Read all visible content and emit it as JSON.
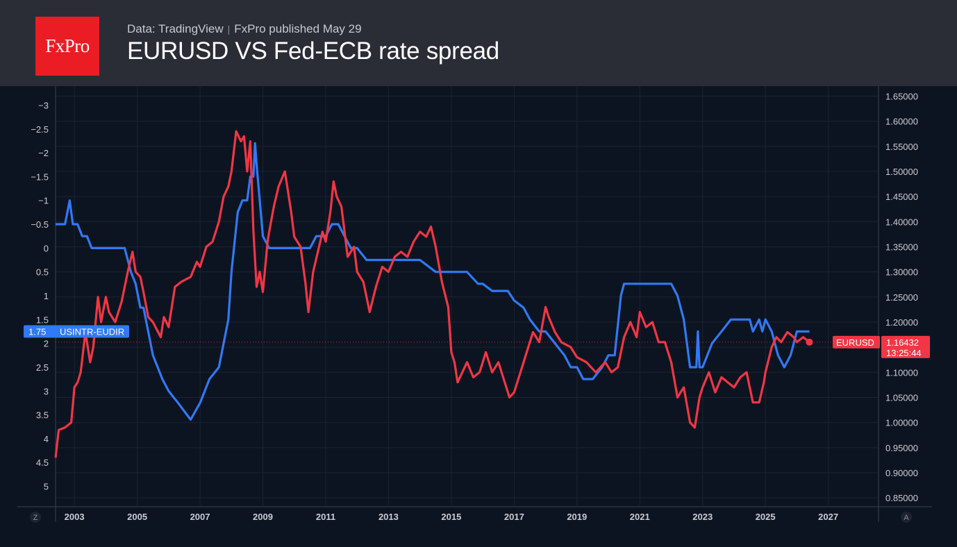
{
  "header": {
    "logo_text": "FxPro",
    "source": "Data: TradingView",
    "publisher": "FxPro published May 29",
    "title": "EURUSD VS Fed-ECB rate spread"
  },
  "corners": {
    "left": "Z",
    "right": "A"
  },
  "colors": {
    "background": "#0d1421",
    "header_bg": "#2a2d36",
    "logo_bg": "#ec1c24",
    "spread_line": "#3179f5",
    "eurusd_line": "#f23645"
  },
  "chart_data": {
    "type": "line",
    "title": "EURUSD VS Fed-ECB rate spread",
    "grid": true,
    "x_ticks": [
      "2003",
      "2005",
      "2007",
      "2009",
      "2011",
      "2013",
      "2015",
      "2017",
      "2019",
      "2021",
      "2023",
      "2025",
      "2027"
    ],
    "xlim": [
      2002.4,
      2028.6
    ],
    "left_axis": {
      "inverted": true,
      "ylim": [
        -3.4,
        5.4
      ],
      "ticks": [
        "−3",
        "−2.5",
        "−2",
        "−1.5",
        "−1",
        "−0.5",
        "0",
        "0.5",
        "1",
        "1.5",
        "2",
        "2.5",
        "3",
        "3.5",
        "4",
        "4.5",
        "5"
      ],
      "tick_values": [
        -3,
        -2.5,
        -2,
        -1.5,
        -1,
        -0.5,
        0,
        0.5,
        1,
        1.5,
        2,
        2.5,
        3,
        3.5,
        4,
        4.5,
        5
      ]
    },
    "right_axis": {
      "ylim": [
        0.835,
        1.67
      ],
      "ticks": [
        "1.65000",
        "1.60000",
        "1.55000",
        "1.50000",
        "1.45000",
        "1.40000",
        "1.35000",
        "1.30000",
        "1.25000",
        "1.20000",
        "1.15000",
        "1.10000",
        "1.05000",
        "1.00000",
        "0.95000",
        "0.90000",
        "0.85000"
      ],
      "tick_values": [
        1.65,
        1.6,
        1.55,
        1.5,
        1.45,
        1.4,
        1.35,
        1.3,
        1.25,
        1.2,
        1.15,
        1.1,
        1.05,
        1.0,
        0.95,
        0.9,
        0.85
      ]
    },
    "series": [
      {
        "name": "USINTR-EUDIR",
        "axis": "left",
        "last_value_label": "1.75",
        "x": [
          2002.4,
          2002.7,
          2002.85,
          2002.95,
          2003.1,
          2003.25,
          2003.4,
          2003.55,
          2004.0,
          2004.6,
          2004.8,
          2004.95,
          2005.1,
          2005.2,
          2005.5,
          2005.8,
          2006.0,
          2006.3,
          2006.7,
          2007.0,
          2007.3,
          2007.6,
          2007.9,
          2008.0,
          2008.2,
          2008.35,
          2008.5,
          2008.6,
          2008.7,
          2008.75,
          2008.8,
          2008.9,
          2009.0,
          2009.2,
          2009.5,
          2010.0,
          2010.5,
          2010.7,
          2011.0,
          2011.2,
          2011.4,
          2011.6,
          2011.8,
          2012.0,
          2012.3,
          2012.7,
          2013.0,
          2014.0,
          2014.5,
          2014.7,
          2015.0,
          2015.5,
          2015.85,
          2016.0,
          2016.3,
          2016.8,
          2017.0,
          2017.3,
          2017.5,
          2017.8,
          2018.0,
          2018.3,
          2018.6,
          2018.8,
          2019.0,
          2019.2,
          2019.5,
          2019.8,
          2020.0,
          2020.2,
          2020.4,
          2020.5,
          2021.0,
          2021.5,
          2022.0,
          2022.2,
          2022.4,
          2022.6,
          2022.8,
          2022.85,
          2022.9,
          2023.0,
          2023.3,
          2023.6,
          2023.9,
          2024.5,
          2024.6,
          2024.8,
          2024.9,
          2025.0,
          2025.2,
          2025.4,
          2025.6,
          2025.8,
          2026.0,
          2026.2,
          2026.4
        ],
        "y": [
          -0.5,
          -0.5,
          -1.0,
          -0.5,
          -0.5,
          -0.25,
          -0.25,
          0.0,
          0.0,
          0.0,
          0.5,
          0.75,
          1.25,
          1.25,
          2.25,
          2.75,
          3.0,
          3.25,
          3.6,
          3.25,
          2.75,
          2.5,
          1.5,
          0.5,
          -0.75,
          -1.0,
          -1.0,
          -1.5,
          -1.5,
          -2.2,
          -1.75,
          -1.0,
          -0.25,
          0.0,
          0.0,
          0.0,
          0.0,
          -0.25,
          -0.25,
          -0.5,
          -0.5,
          -0.25,
          0.0,
          0.0,
          0.25,
          0.25,
          0.25,
          0.25,
          0.5,
          0.5,
          0.5,
          0.5,
          0.75,
          0.75,
          0.9,
          0.9,
          1.1,
          1.25,
          1.5,
          1.75,
          1.75,
          2.0,
          2.25,
          2.5,
          2.5,
          2.75,
          2.75,
          2.5,
          2.25,
          2.25,
          1.0,
          0.75,
          0.75,
          0.75,
          0.75,
          1.0,
          1.5,
          2.5,
          2.5,
          1.75,
          2.5,
          2.5,
          2.0,
          1.75,
          1.5,
          1.5,
          1.75,
          1.5,
          1.75,
          1.5,
          1.75,
          2.25,
          2.5,
          2.25,
          1.75,
          1.75,
          1.75
        ]
      },
      {
        "name": "EURUSD",
        "axis": "right",
        "last_value_label": "1.16432",
        "countdown": "13:25:44",
        "x": [
          2002.4,
          2002.5,
          2002.7,
          2002.9,
          2003.0,
          2003.1,
          2003.2,
          2003.35,
          2003.5,
          2003.6,
          2003.75,
          2003.85,
          2004.0,
          2004.1,
          2004.3,
          2004.5,
          2004.7,
          2004.85,
          2004.95,
          2005.1,
          2005.2,
          2005.35,
          2005.5,
          2005.75,
          2005.85,
          2006.0,
          2006.2,
          2006.4,
          2006.7,
          2006.9,
          2007.0,
          2007.2,
          2007.4,
          2007.6,
          2007.75,
          2007.9,
          2008.0,
          2008.15,
          2008.3,
          2008.4,
          2008.5,
          2008.6,
          2008.7,
          2008.8,
          2008.9,
          2009.0,
          2009.15,
          2009.2,
          2009.35,
          2009.5,
          2009.7,
          2009.9,
          2010.0,
          2010.2,
          2010.35,
          2010.45,
          2010.6,
          2010.75,
          2010.9,
          2011.0,
          2011.15,
          2011.25,
          2011.35,
          2011.5,
          2011.7,
          2011.9,
          2012.0,
          2012.2,
          2012.4,
          2012.6,
          2012.8,
          2013.0,
          2013.2,
          2013.4,
          2013.6,
          2013.8,
          2014.0,
          2014.2,
          2014.35,
          2014.5,
          2014.7,
          2014.9,
          2015.0,
          2015.1,
          2015.2,
          2015.5,
          2015.7,
          2015.9,
          2016.1,
          2016.3,
          2016.5,
          2016.7,
          2016.85,
          2017.0,
          2017.2,
          2017.4,
          2017.6,
          2017.8,
          2018.0,
          2018.1,
          2018.3,
          2018.5,
          2018.8,
          2019.0,
          2019.3,
          2019.6,
          2019.9,
          2020.1,
          2020.3,
          2020.5,
          2020.7,
          2020.9,
          2021.0,
          2021.2,
          2021.4,
          2021.6,
          2021.8,
          2022.0,
          2022.2,
          2022.4,
          2022.6,
          2022.75,
          2022.9,
          2023.0,
          2023.2,
          2023.4,
          2023.6,
          2023.8,
          2024.0,
          2024.2,
          2024.4,
          2024.6,
          2024.8,
          2024.95,
          2025.0,
          2025.2,
          2025.35,
          2025.5,
          2025.7,
          2025.9,
          2026.0,
          2026.2,
          2026.4
        ],
        "y": [
          0.93,
          0.985,
          0.99,
          1.0,
          1.07,
          1.08,
          1.1,
          1.18,
          1.12,
          1.15,
          1.25,
          1.2,
          1.25,
          1.22,
          1.2,
          1.24,
          1.3,
          1.34,
          1.3,
          1.29,
          1.26,
          1.21,
          1.2,
          1.17,
          1.21,
          1.19,
          1.27,
          1.28,
          1.29,
          1.32,
          1.31,
          1.35,
          1.36,
          1.4,
          1.45,
          1.47,
          1.5,
          1.58,
          1.56,
          1.57,
          1.5,
          1.56,
          1.38,
          1.27,
          1.3,
          1.26,
          1.36,
          1.38,
          1.43,
          1.47,
          1.5,
          1.42,
          1.37,
          1.35,
          1.28,
          1.22,
          1.3,
          1.34,
          1.38,
          1.36,
          1.42,
          1.48,
          1.45,
          1.43,
          1.33,
          1.35,
          1.3,
          1.28,
          1.22,
          1.27,
          1.31,
          1.3,
          1.33,
          1.34,
          1.33,
          1.36,
          1.38,
          1.37,
          1.39,
          1.35,
          1.28,
          1.23,
          1.14,
          1.12,
          1.08,
          1.12,
          1.09,
          1.1,
          1.14,
          1.1,
          1.12,
          1.08,
          1.05,
          1.06,
          1.1,
          1.14,
          1.18,
          1.16,
          1.23,
          1.21,
          1.18,
          1.16,
          1.15,
          1.13,
          1.12,
          1.1,
          1.12,
          1.1,
          1.11,
          1.17,
          1.2,
          1.17,
          1.22,
          1.19,
          1.2,
          1.16,
          1.16,
          1.12,
          1.05,
          1.07,
          1.0,
          0.99,
          1.05,
          1.07,
          1.1,
          1.06,
          1.09,
          1.08,
          1.07,
          1.09,
          1.1,
          1.04,
          1.04,
          1.08,
          1.1,
          1.15,
          1.17,
          1.16,
          1.18,
          1.17,
          1.16,
          1.17,
          1.16
        ]
      }
    ]
  }
}
